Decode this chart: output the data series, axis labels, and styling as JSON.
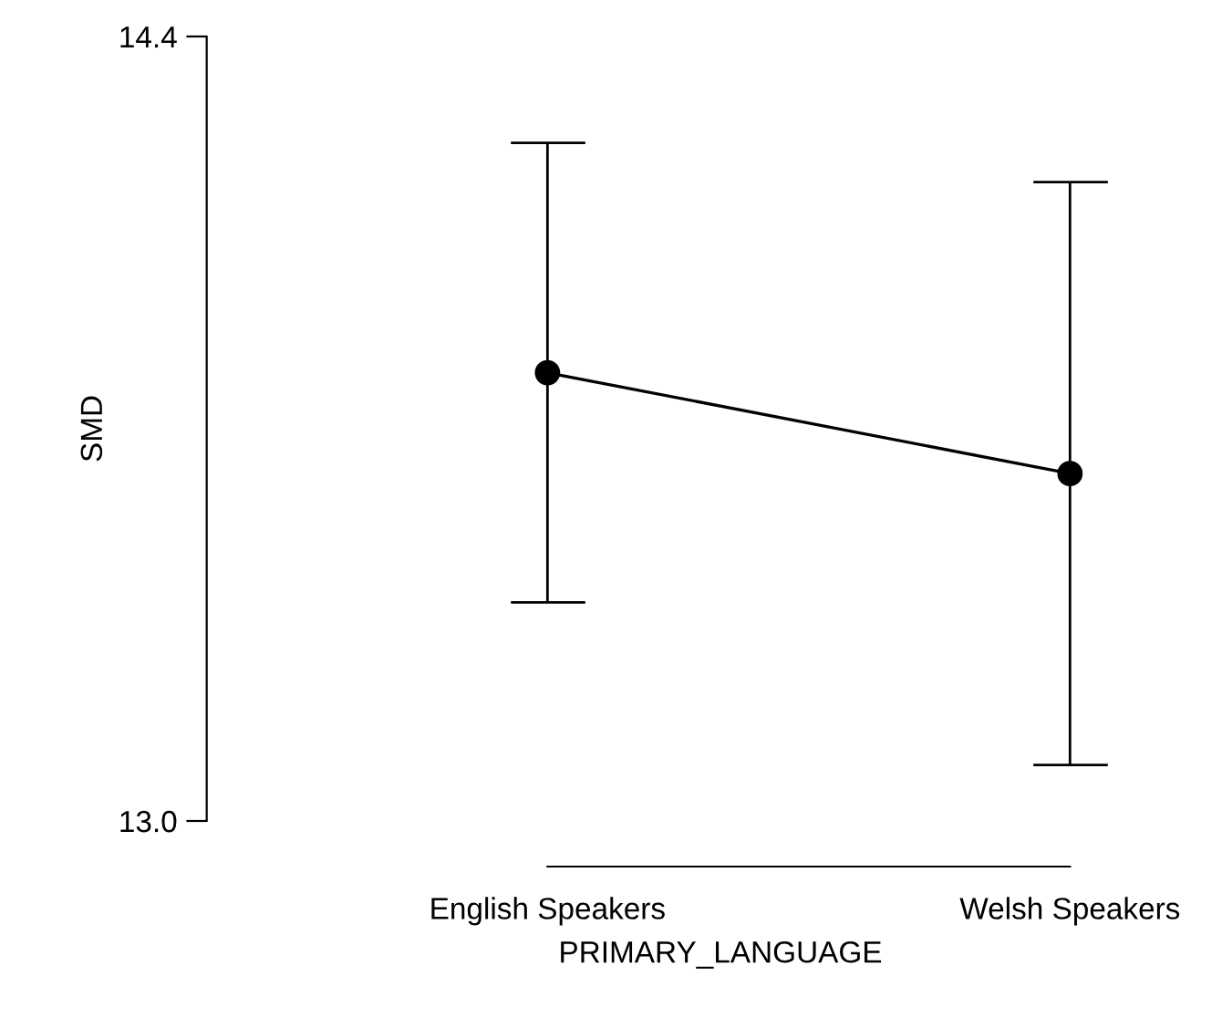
{
  "chart_data": {
    "type": "line",
    "xlabel": "PRIMARY_LANGUAGE",
    "ylabel": "SMD",
    "categories": [
      "English Speakers",
      "Welsh Speakers"
    ],
    "series": [
      {
        "color": "#000000",
        "values": [
          13.8,
          13.62
        ],
        "errors": [
          [
            13.39,
            14.21
          ],
          [
            13.1,
            14.14
          ]
        ]
      }
    ],
    "ylim": [
      13.0,
      14.4
    ],
    "yticks": [
      {
        "value": 13.0,
        "label": "13.0"
      },
      {
        "value": 14.4,
        "label": "14.4"
      }
    ],
    "marker": "circle",
    "line_style": "solid",
    "grid": false,
    "legend": false
  }
}
